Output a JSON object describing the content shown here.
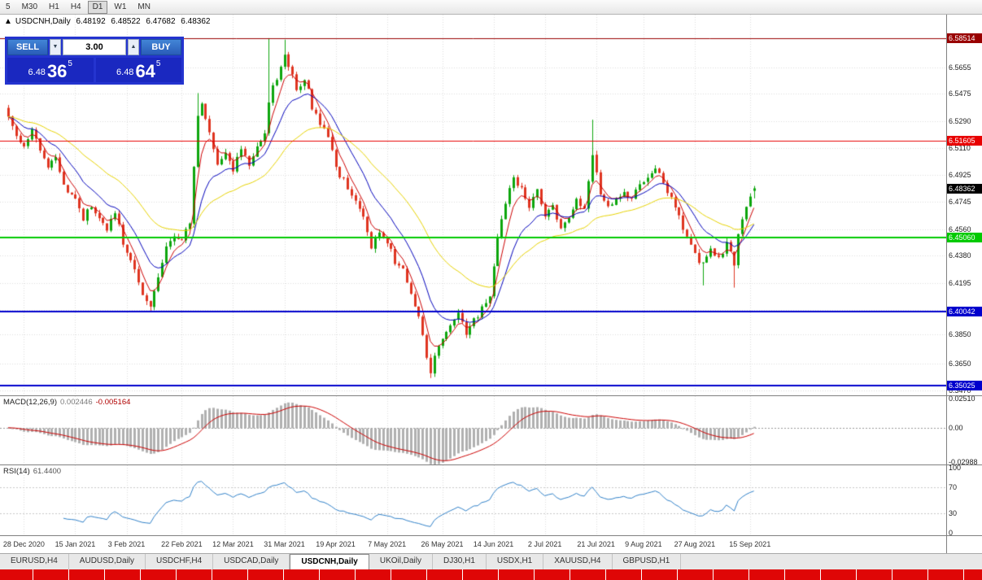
{
  "toolbar": {
    "timeframes": [
      {
        "label": "5",
        "active": false
      },
      {
        "label": "M30",
        "active": false
      },
      {
        "label": "H1",
        "active": false
      },
      {
        "label": "H4",
        "active": false
      },
      {
        "label": "D1",
        "active": true
      },
      {
        "label": "W1",
        "active": false
      },
      {
        "label": "MN",
        "active": false
      }
    ]
  },
  "chart_header": {
    "arrow": "▲",
    "symbol": "USDCNH,Daily",
    "open": "6.48192",
    "high": "6.48522",
    "low": "6.47682",
    "close": "6.48362"
  },
  "trade_panel": {
    "sell_label": "SELL",
    "buy_label": "BUY",
    "volume": "3.00",
    "volume_down_glyph": "▼",
    "volume_up_glyph": "▲",
    "sell_price": {
      "prefix": "6.48",
      "big": "36",
      "sup": "5"
    },
    "buy_price": {
      "prefix": "6.48",
      "big": "64",
      "sup": "5"
    },
    "colors": {
      "panel_bg": "#2434cf",
      "button_bg": "#4285d6",
      "price_bg": "#1a28c0"
    }
  },
  "indicators": {
    "macd": {
      "name": "MACD(12,26,9)",
      "value_main": "0.002446",
      "value_signal": "-0.005164",
      "axis_labels": [
        "0.02510",
        "0.00",
        "-0.02988"
      ]
    },
    "rsi": {
      "name": "RSI(14)",
      "value": "61.4400",
      "axis_labels": [
        "100",
        "70",
        "30",
        "0"
      ]
    }
  },
  "tabs": [
    {
      "label": "EURUSD,H4",
      "active": false
    },
    {
      "label": "AUDUSD,Daily",
      "active": false
    },
    {
      "label": "USDCHF,H4",
      "active": false
    },
    {
      "label": "USDCAD,Daily",
      "active": false
    },
    {
      "label": "USDCNH,Daily",
      "active": true
    },
    {
      "label": "UKOil,Daily",
      "active": false
    },
    {
      "label": "DJ30,H1",
      "active": false
    },
    {
      "label": "USDX,H1",
      "active": false
    },
    {
      "label": "XAUUSD,H4",
      "active": false
    },
    {
      "label": "GBPUSD,H1",
      "active": false
    }
  ],
  "chart_data": {
    "type": "candlestick",
    "symbol": "USDCNH",
    "timeframe": "Daily",
    "grid_color": "#dedede",
    "price_range": [
      6.3437,
      6.601
    ],
    "y_ticks": [
      6.5655,
      6.5475,
      6.529,
      6.511,
      6.4925,
      6.4745,
      6.456,
      6.438,
      6.4195,
      6.4015,
      6.385,
      6.365,
      6.347
    ],
    "x_labels": [
      {
        "label": "28 Dec 2020",
        "index": 4
      },
      {
        "label": "15 Jan 2021",
        "index": 17
      },
      {
        "label": "3 Feb 2021",
        "index": 30
      },
      {
        "label": "22 Feb 2021",
        "index": 44
      },
      {
        "label": "12 Mar 2021",
        "index": 57
      },
      {
        "label": "31 Mar 2021",
        "index": 70
      },
      {
        "label": "19 Apr 2021",
        "index": 83
      },
      {
        "label": "7 May 2021",
        "index": 96
      },
      {
        "label": "26 May 2021",
        "index": 110
      },
      {
        "label": "14 Jun 2021",
        "index": 123
      },
      {
        "label": "2 Jul 2021",
        "index": 136
      },
      {
        "label": "21 Jul 2021",
        "index": 149
      },
      {
        "label": "9 Aug 2021",
        "index": 161
      },
      {
        "label": "27 Aug 2021",
        "index": 174
      },
      {
        "label": "15 Sep 2021",
        "index": 188
      }
    ],
    "levels": [
      {
        "value": 6.58514,
        "label": "6.58514",
        "color": "#990000",
        "width": 1
      },
      {
        "value": 6.51605,
        "label": "6.51605",
        "color": "#e80000",
        "width": 1
      },
      {
        "value": 6.48362,
        "label": "6.48362",
        "color": "#000000",
        "width": 0
      },
      {
        "value": 6.4506,
        "label": "6.45060",
        "color": "#00ca00",
        "width": 2
      },
      {
        "value": 6.40042,
        "label": "6.40042",
        "color": "#0000cd",
        "width": 2
      },
      {
        "value": 6.35025,
        "label": "6.35025",
        "color": "#0000cd",
        "width": 2
      }
    ],
    "candles": {
      "count": 190,
      "first_open": 6.538,
      "jitter": 0.0026,
      "wick": 0.0028,
      "seed": 20210917,
      "x0": 10,
      "dx": 4.85,
      "body_width": 3,
      "up_color": "#0da60d",
      "down_color": "#df3420",
      "close_anchors": [
        [
          0,
          6.533
        ],
        [
          2,
          6.519
        ],
        [
          4,
          6.512
        ],
        [
          6,
          6.523
        ],
        [
          8,
          6.509
        ],
        [
          10,
          6.497
        ],
        [
          12,
          6.503
        ],
        [
          14,
          6.487
        ],
        [
          17,
          6.476
        ],
        [
          19,
          6.463
        ],
        [
          21,
          6.472
        ],
        [
          23,
          6.464
        ],
        [
          25,
          6.454
        ],
        [
          27,
          6.469
        ],
        [
          29,
          6.446
        ],
        [
          31,
          6.437
        ],
        [
          33,
          6.419
        ],
        [
          35,
          6.406
        ],
        [
          36,
          6.403
        ],
        [
          38,
          6.423
        ],
        [
          40,
          6.442
        ],
        [
          42,
          6.452
        ],
        [
          44,
          6.447
        ],
        [
          46,
          6.46
        ],
        [
          48,
          6.532
        ],
        [
          49,
          6.54
        ],
        [
          51,
          6.521
        ],
        [
          53,
          6.499
        ],
        [
          55,
          6.507
        ],
        [
          57,
          6.497
        ],
        [
          59,
          6.509
        ],
        [
          61,
          6.501
        ],
        [
          63,
          6.513
        ],
        [
          65,
          6.521
        ],
        [
          66,
          6.544
        ],
        [
          68,
          6.559
        ],
        [
          70,
          6.574
        ],
        [
          71,
          6.567
        ],
        [
          73,
          6.551
        ],
        [
          75,
          6.559
        ],
        [
          77,
          6.539
        ],
        [
          79,
          6.527
        ],
        [
          81,
          6.517
        ],
        [
          83,
          6.497
        ],
        [
          85,
          6.489
        ],
        [
          87,
          6.481
        ],
        [
          89,
          6.471
        ],
        [
          91,
          6.454
        ],
        [
          92,
          6.441
        ],
        [
          94,
          6.454
        ],
        [
          96,
          6.447
        ],
        [
          98,
          6.435
        ],
        [
          100,
          6.427
        ],
        [
          102,
          6.414
        ],
        [
          104,
          6.397
        ],
        [
          105,
          6.384
        ],
        [
          106,
          6.37
        ],
        [
          107,
          6.359
        ],
        [
          108,
          6.371
        ],
        [
          110,
          6.381
        ],
        [
          112,
          6.391
        ],
        [
          114,
          6.398
        ],
        [
          116,
          6.387
        ],
        [
          118,
          6.394
        ],
        [
          120,
          6.403
        ],
        [
          122,
          6.411
        ],
        [
          124,
          6.449
        ],
        [
          126,
          6.474
        ],
        [
          128,
          6.489
        ],
        [
          130,
          6.485
        ],
        [
          132,
          6.473
        ],
        [
          134,
          6.481
        ],
        [
          136,
          6.464
        ],
        [
          138,
          6.471
        ],
        [
          140,
          6.457
        ],
        [
          142,
          6.465
        ],
        [
          144,
          6.477
        ],
        [
          146,
          6.47
        ],
        [
          148,
          6.507
        ],
        [
          150,
          6.481
        ],
        [
          152,
          6.469
        ],
        [
          154,
          6.475
        ],
        [
          156,
          6.483
        ],
        [
          158,
          6.477
        ],
        [
          160,
          6.487
        ],
        [
          162,
          6.493
        ],
        [
          164,
          6.497
        ],
        [
          166,
          6.489
        ],
        [
          168,
          6.477
        ],
        [
          170,
          6.465
        ],
        [
          172,
          6.451
        ],
        [
          174,
          6.439
        ],
        [
          176,
          6.431
        ],
        [
          178,
          6.443
        ],
        [
          180,
          6.437
        ],
        [
          182,
          6.445
        ],
        [
          184,
          6.434
        ],
        [
          185,
          6.451
        ],
        [
          186,
          6.463
        ],
        [
          187,
          6.471
        ],
        [
          188,
          6.479
        ],
        [
          189,
          6.48362
        ]
      ],
      "wick_events": [
        {
          "i": 36,
          "low": 6.4015
        },
        {
          "i": 48,
          "high": 6.548
        },
        {
          "i": 66,
          "high": 6.5851
        },
        {
          "i": 70,
          "high": 6.584
        },
        {
          "i": 107,
          "low": 6.3554
        },
        {
          "i": 148,
          "high": 6.53
        },
        {
          "i": 176,
          "low": 6.418
        },
        {
          "i": 184,
          "low": 6.4165
        }
      ],
      "last": {
        "open": 6.48192,
        "high": 6.48522,
        "low": 6.47682,
        "close": 6.48362
      }
    },
    "moving_averages": [
      {
        "type": "ema",
        "period": 5,
        "color": "#cc0000"
      },
      {
        "type": "ema",
        "period": 13,
        "color": "#0000bb"
      },
      {
        "type": "ema",
        "period": 34,
        "color": "#e6d200"
      }
    ],
    "macd": {
      "fast": 12,
      "slow": 26,
      "signal": 9,
      "range": [
        -0.032,
        0.0275
      ],
      "axis_values": [
        0.0251,
        0.0,
        -0.02988
      ],
      "hist_color": "#b0b0b0",
      "signal_color": "#cc0000"
    },
    "rsi": {
      "period": 14,
      "range": [
        0,
        100
      ],
      "levels": [
        70,
        30
      ],
      "axis_values": [
        100,
        70,
        30,
        0
      ],
      "line_color": "#3080c8"
    }
  }
}
